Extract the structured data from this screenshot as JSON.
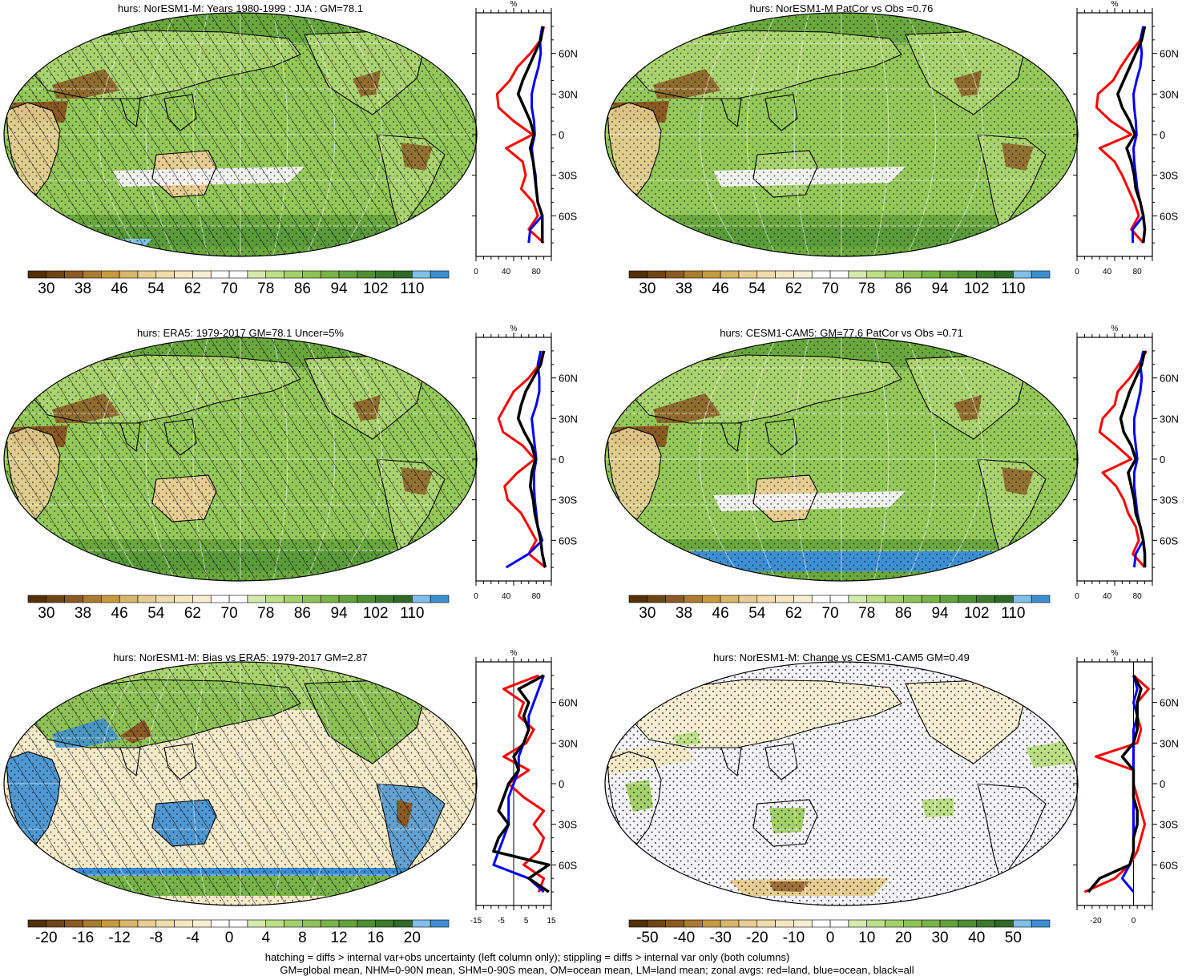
{
  "panels": [
    {
      "title": "hurs: NorESM1-M: Years 1980-1999 : JJA : GM=78.1",
      "cbar": "abs",
      "zonal_xticks": [
        "0",
        "40",
        "80"
      ],
      "hatching": true,
      "stippling": true
    },
    {
      "title": "hurs: NorESM1-M PatCor vs Obs =0.76",
      "cbar": "abs",
      "zonal_xticks": [
        "0",
        "40",
        "80"
      ],
      "hatching": false,
      "stippling": true
    },
    {
      "title": "hurs: ERA5: 1979-2017 GM=78.1 Uncer=5%",
      "cbar": "abs",
      "zonal_xticks": [
        "0",
        "40",
        "80"
      ],
      "hatching": true,
      "stippling": true
    },
    {
      "title": "hurs: CESM1-CAM5: GM=77.6 PatCor vs Obs =0.71",
      "cbar": "abs",
      "zonal_xticks": [
        "0",
        "40",
        "80"
      ],
      "hatching": false,
      "stippling": true
    },
    {
      "title": "hurs: NorESM1-M: Bias vs ERA5: 1979-2017 GM=2.87",
      "cbar": "bias",
      "zonal_xticks": [
        "-15",
        "-5",
        "5",
        "15"
      ],
      "hatching": true,
      "stippling": true
    },
    {
      "title": "hurs: NorESM1-M: Change vs CESM1-CAM5 GM=0.49",
      "cbar": "change",
      "zonal_xticks": [
        "-20",
        "0"
      ],
      "hatching": false,
      "stippling": true
    }
  ],
  "zonal_unit": "%",
  "lat_ticks": [
    "60N",
    "30N",
    "0",
    "30S",
    "60S"
  ],
  "colorbars": {
    "abs": {
      "labels": [
        "30",
        "38",
        "46",
        "54",
        "62",
        "70",
        "78",
        "86",
        "94",
        "102",
        "110"
      ],
      "colors": [
        "#543005",
        "#6e4514",
        "#8c5a23",
        "#a97c2f",
        "#c79a3e",
        "#d8b66a",
        "#e6cd91",
        "#efdcaa",
        "#f4e6bf",
        "#f7eed3",
        "#ffffff",
        "#ffffff",
        "#d3ebac",
        "#bcdf86",
        "#a4d06a",
        "#8ec257",
        "#78b448",
        "#63a33d",
        "#4e8f33",
        "#3a7a2b",
        "#2f6a26",
        "#7fbfea",
        "#3d8fd4"
      ]
    },
    "bias": {
      "labels": [
        "-20",
        "-16",
        "-12",
        "-8",
        "-4",
        "0",
        "4",
        "8",
        "12",
        "16",
        "20"
      ],
      "colors": [
        "#543005",
        "#6e4514",
        "#8c5a23",
        "#a97c2f",
        "#c79a3e",
        "#d8b66a",
        "#e6cd91",
        "#efdcaa",
        "#f4e6bf",
        "#f7eed3",
        "#ffffff",
        "#ffffff",
        "#d3ebac",
        "#bcdf86",
        "#a4d06a",
        "#8ec257",
        "#78b448",
        "#63a33d",
        "#4e8f33",
        "#3a7a2b",
        "#2f6a26",
        "#7fbfea",
        "#3d8fd4"
      ]
    },
    "change": {
      "labels": [
        "-50",
        "-40",
        "-30",
        "-20",
        "-10",
        "0",
        "10",
        "20",
        "30",
        "40",
        "50"
      ],
      "colors": [
        "#543005",
        "#6e4514",
        "#8c5a23",
        "#a97c2f",
        "#c79a3e",
        "#d8b66a",
        "#e6cd91",
        "#efdcaa",
        "#f4e6bf",
        "#f7eed3",
        "#ffffff",
        "#ffffff",
        "#d3ebac",
        "#bcdf86",
        "#a4d06a",
        "#8ec257",
        "#78b448",
        "#63a33d",
        "#4e8f33",
        "#3a7a2b",
        "#2f6a26",
        "#7fbfea",
        "#3d8fd4"
      ]
    }
  },
  "map_colors": {
    "green_base": "#94c95a",
    "green_dark": "#6aa83e",
    "brown": "#8c5a23",
    "tan": "#e6cd91",
    "cream": "#f5ebc9",
    "white": "#f4f4f7",
    "blue": "#3d8fd4",
    "outline": "#000000"
  },
  "zonal_colors": {
    "land": "#ff0000",
    "ocean": "#0000ff",
    "all": "#000000"
  },
  "footnote": {
    "line1": "hatching = diffs > internal var+obs uncertainty (left column only); stippling = diffs > internal var only (both columns)",
    "line2": "GM=global mean, NHM=0-90N mean, SHM=0-90S mean, OM=ocean mean, LM=land mean; zonal avgs: red=land, blue=ocean, black=all"
  },
  "chart_data": [
    {
      "type": "heatmap",
      "title": "hurs: NorESM1-M: Years 1980-1999 : JJA : GM=78.1",
      "colorbar_ticks": [
        30,
        38,
        46,
        54,
        62,
        70,
        78,
        86,
        94,
        102,
        110
      ],
      "zonal_profile": {
        "xlim": [
          0,
          100
        ],
        "xticks": [
          0,
          40,
          80
        ],
        "lat": [
          -80,
          -70,
          -60,
          -50,
          -40,
          -30,
          -20,
          -10,
          0,
          10,
          20,
          30,
          40,
          50,
          60,
          70,
          80
        ],
        "series": [
          {
            "name": "land",
            "values": [
              90,
              70,
              82,
              76,
              60,
              66,
              62,
              40,
              75,
              50,
              30,
              28,
              45,
              55,
              72,
              86,
              90
            ]
          },
          {
            "name": "ocean",
            "values": [
              70,
              72,
              88,
              82,
              80,
              79,
              76,
              74,
              78,
              77,
              74,
              74,
              78,
              83,
              86,
              85,
              88
            ]
          },
          {
            "name": "all",
            "values": [
              88,
              88,
              88,
              82,
              80,
              78,
              76,
              72,
              77,
              72,
              64,
              56,
              62,
              70,
              78,
              86,
              89
            ]
          }
        ]
      }
    },
    {
      "type": "heatmap",
      "title": "hurs: NorESM1-M PatCor vs Obs =0.76",
      "colorbar_ticks": [
        30,
        38,
        46,
        54,
        62,
        70,
        78,
        86,
        94,
        102,
        110
      ],
      "zonal_profile": {
        "xlim": [
          0,
          100
        ],
        "xticks": [
          0,
          40,
          80
        ],
        "lat": [
          -80,
          -70,
          -60,
          -50,
          -40,
          -30,
          -20,
          -10,
          0,
          10,
          20,
          30,
          40,
          50,
          60,
          70,
          80
        ],
        "series": [
          {
            "name": "land",
            "values": [
              88,
              72,
              82,
              76,
              68,
              60,
              50,
              30,
              72,
              45,
              26,
              28,
              48,
              58,
              70,
              84,
              90
            ]
          },
          {
            "name": "ocean",
            "values": [
              74,
              74,
              88,
              84,
              80,
              78,
              76,
              75,
              79,
              78,
              76,
              75,
              79,
              84,
              86,
              84,
              88
            ]
          },
          {
            "name": "all",
            "values": [
              88,
              90,
              88,
              84,
              78,
              76,
              72,
              66,
              77,
              70,
              60,
              54,
              62,
              70,
              78,
              86,
              90
            ]
          }
        ]
      }
    },
    {
      "type": "heatmap",
      "title": "hurs: ERA5: 1979-2017 GM=78.1 Uncer=5%",
      "colorbar_ticks": [
        30,
        38,
        46,
        54,
        62,
        70,
        78,
        86,
        94,
        102,
        110
      ],
      "zonal_profile": {
        "xlim": [
          0,
          100
        ],
        "xticks": [
          0,
          40,
          80
        ],
        "lat": [
          -80,
          -70,
          -60,
          -50,
          -40,
          -30,
          -20,
          -10,
          0,
          10,
          20,
          30,
          40,
          50,
          60,
          70,
          80
        ],
        "series": [
          {
            "name": "land",
            "values": [
              92,
              70,
              80,
              70,
              60,
              42,
              38,
              55,
              78,
              62,
              36,
              30,
              40,
              50,
              70,
              84,
              90
            ]
          },
          {
            "name": "ocean",
            "values": [
              40,
              70,
              88,
              82,
              80,
              78,
              77,
              77,
              80,
              78,
              76,
              74,
              80,
              84,
              84,
              82,
              86
            ]
          },
          {
            "name": "all",
            "values": [
              92,
              88,
              86,
              82,
              78,
              76,
              72,
              74,
              79,
              74,
              64,
              56,
              60,
              66,
              76,
              86,
              90
            ]
          }
        ]
      }
    },
    {
      "type": "heatmap",
      "title": "hurs: CESM1-CAM5: GM=77.6 PatCor vs Obs =0.71",
      "colorbar_ticks": [
        30,
        38,
        46,
        54,
        62,
        70,
        78,
        86,
        94,
        102,
        110
      ],
      "zonal_profile": {
        "xlim": [
          0,
          100
        ],
        "xticks": [
          0,
          40,
          80
        ],
        "lat": [
          -80,
          -70,
          -60,
          -50,
          -40,
          -30,
          -20,
          -10,
          0,
          10,
          20,
          30,
          40,
          50,
          60,
          70,
          80
        ],
        "series": [
          {
            "name": "land",
            "values": [
              90,
              74,
              82,
              78,
              68,
              62,
              52,
              34,
              72,
              52,
              30,
              34,
              50,
              54,
              70,
              82,
              92
            ]
          },
          {
            "name": "ocean",
            "values": [
              76,
              78,
              88,
              84,
              80,
              78,
              76,
              76,
              80,
              78,
              76,
              76,
              80,
              84,
              86,
              84,
              88
            ]
          },
          {
            "name": "all",
            "values": [
              90,
              90,
              88,
              84,
              78,
              76,
              72,
              68,
              78,
              72,
              62,
              58,
              64,
              70,
              78,
              86,
              90
            ]
          }
        ]
      }
    },
    {
      "type": "heatmap",
      "title": "hurs: NorESM1-M: Bias vs ERA5: 1979-2017 GM=2.87",
      "colorbar_ticks": [
        -20,
        -16,
        -12,
        -8,
        -4,
        0,
        4,
        8,
        12,
        16,
        20
      ],
      "zonal_profile": {
        "xlim": [
          -15,
          15
        ],
        "xticks": [
          -15,
          -5,
          5,
          15
        ],
        "lat": [
          -80,
          -70,
          -60,
          -50,
          -40,
          -30,
          -20,
          -10,
          0,
          10,
          20,
          30,
          40,
          50,
          60,
          70,
          80
        ],
        "series": [
          {
            "name": "land",
            "values": [
              10,
              12,
              4,
              10,
              12,
              8,
              12,
              4,
              -2,
              6,
              -4,
              5,
              8,
              2,
              4,
              -4,
              10
            ]
          },
          {
            "name": "ocean",
            "values": [
              12,
              6,
              -8,
              -6,
              -4,
              -2,
              -2,
              -2,
              0,
              2,
              2,
              4,
              6,
              6,
              8,
              10,
              12
            ]
          },
          {
            "name": "all",
            "values": [
              14,
              6,
              14,
              -8,
              -6,
              -2,
              -6,
              -4,
              -2,
              2,
              0,
              4,
              6,
              4,
              6,
              2,
              12
            ]
          }
        ]
      }
    },
    {
      "type": "heatmap",
      "title": "hurs: NorESM1-M: Change vs CESM1-CAM5 GM=0.49",
      "colorbar_ticks": [
        -50,
        -40,
        -30,
        -20,
        -10,
        0,
        10,
        20,
        30,
        40,
        50
      ],
      "zonal_profile": {
        "xlim": [
          -30,
          10
        ],
        "xticks": [
          -20,
          0
        ],
        "lat": [
          -80,
          -70,
          -60,
          -50,
          -40,
          -30,
          -20,
          -10,
          0,
          10,
          20,
          30,
          40,
          50,
          60,
          70,
          80
        ],
        "series": [
          {
            "name": "land",
            "values": [
              -26,
              -10,
              -2,
              2,
              4,
              6,
              4,
              2,
              0,
              0,
              -20,
              2,
              4,
              2,
              2,
              8,
              0
            ]
          },
          {
            "name": "ocean",
            "values": [
              0,
              -6,
              -2,
              0,
              0,
              0,
              0,
              0,
              0,
              0,
              0,
              0,
              0,
              2,
              0,
              2,
              0
            ]
          },
          {
            "name": "all",
            "values": [
              -24,
              -18,
              -2,
              0,
              0,
              2,
              2,
              0,
              0,
              0,
              -6,
              0,
              2,
              2,
              2,
              4,
              0
            ]
          }
        ]
      }
    }
  ]
}
